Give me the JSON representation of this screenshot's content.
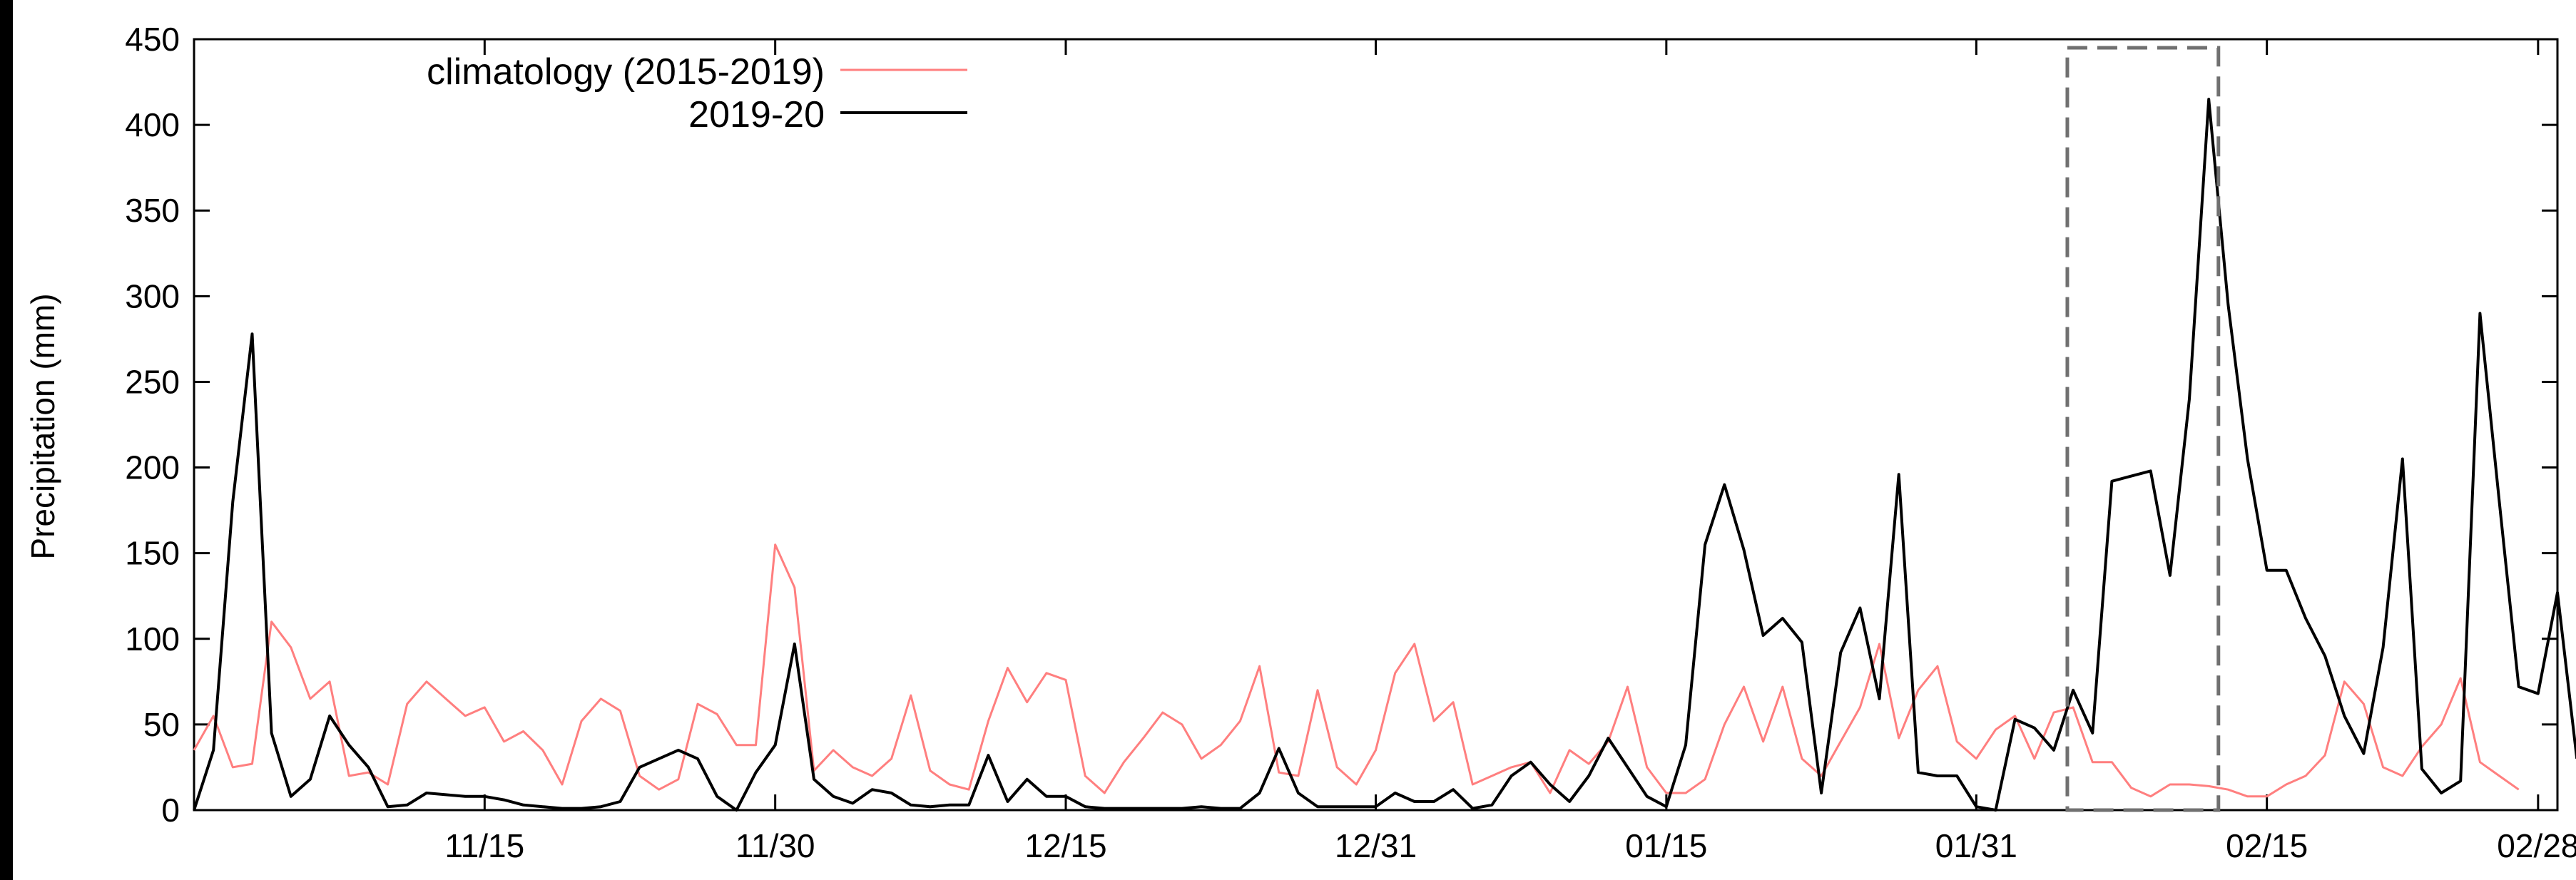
{
  "chart_data": {
    "type": "line",
    "ylabel": "Precipitation (mm)",
    "xlabel": "",
    "ylim": [
      0,
      450
    ],
    "yticks": [
      0,
      50,
      100,
      150,
      200,
      250,
      300,
      350,
      400,
      450
    ],
    "xlim": [
      0,
      122
    ],
    "xtick_positions": [
      15,
      30,
      45,
      61,
      76,
      92,
      107,
      121
    ],
    "xtick_labels": [
      "11/15",
      "11/30",
      "12/15",
      "12/31",
      "01/15",
      "01/31",
      "02/15",
      "02/28"
    ],
    "grid": false,
    "legend_placement": "top-left",
    "highlight_box": {
      "x": [
        96.7,
        104.5
      ],
      "y": [
        0,
        445
      ]
    },
    "series": [
      {
        "name": "climatology (2015-2019)",
        "color": "#ff7f7f",
        "values": [
          35,
          55,
          25,
          27,
          110,
          95,
          65,
          75,
          20,
          22,
          15,
          62,
          75,
          65,
          55,
          60,
          40,
          46,
          35,
          15,
          52,
          65,
          58,
          20,
          12,
          18,
          62,
          56,
          38,
          38,
          155,
          130,
          23,
          35,
          25,
          20,
          30,
          67,
          23,
          15,
          12,
          52,
          83,
          63,
          80,
          76,
          20,
          10,
          28,
          42,
          57,
          50,
          30,
          38,
          52,
          84,
          22,
          20,
          70,
          25,
          15,
          35,
          80,
          97,
          52,
          63,
          15,
          20,
          25,
          28,
          10,
          35,
          27,
          40,
          72,
          25,
          10,
          10,
          18,
          50,
          72,
          40,
          72,
          30,
          20,
          40,
          60,
          97,
          42,
          70,
          84,
          40,
          30,
          47,
          55,
          30,
          57,
          60,
          28,
          28,
          13,
          8,
          15,
          15,
          14,
          12,
          8,
          8,
          15,
          20,
          32,
          75,
          62,
          25,
          20,
          37,
          50,
          77,
          28,
          20,
          12
        ]
      },
      {
        "name": "2019-20",
        "color": "#000000",
        "values": [
          0,
          35,
          180,
          278,
          45,
          8,
          18,
          55,
          38,
          25,
          2,
          3,
          10,
          9,
          8,
          8,
          6,
          3,
          2,
          1,
          1,
          2,
          5,
          25,
          30,
          35,
          30,
          8,
          0,
          22,
          38,
          97,
          18,
          8,
          4,
          12,
          10,
          3,
          2,
          3,
          3,
          32,
          5,
          18,
          8,
          8,
          2,
          1,
          1,
          1,
          1,
          1,
          2,
          1,
          1,
          10,
          36,
          10,
          2,
          2,
          2,
          2,
          10,
          5,
          5,
          12,
          1,
          3,
          20,
          28,
          15,
          5,
          20,
          42,
          25,
          8,
          2,
          38,
          155,
          190,
          152,
          102,
          112,
          98,
          10,
          92,
          118,
          65,
          196,
          22,
          20,
          20,
          2,
          0,
          53,
          48,
          35,
          70,
          45,
          192,
          195,
          198,
          137,
          240,
          415,
          295,
          205,
          140,
          140,
          112,
          90,
          55,
          33,
          95,
          205,
          24,
          10,
          17,
          290,
          180,
          72,
          68,
          127,
          30
        ]
      }
    ]
  }
}
